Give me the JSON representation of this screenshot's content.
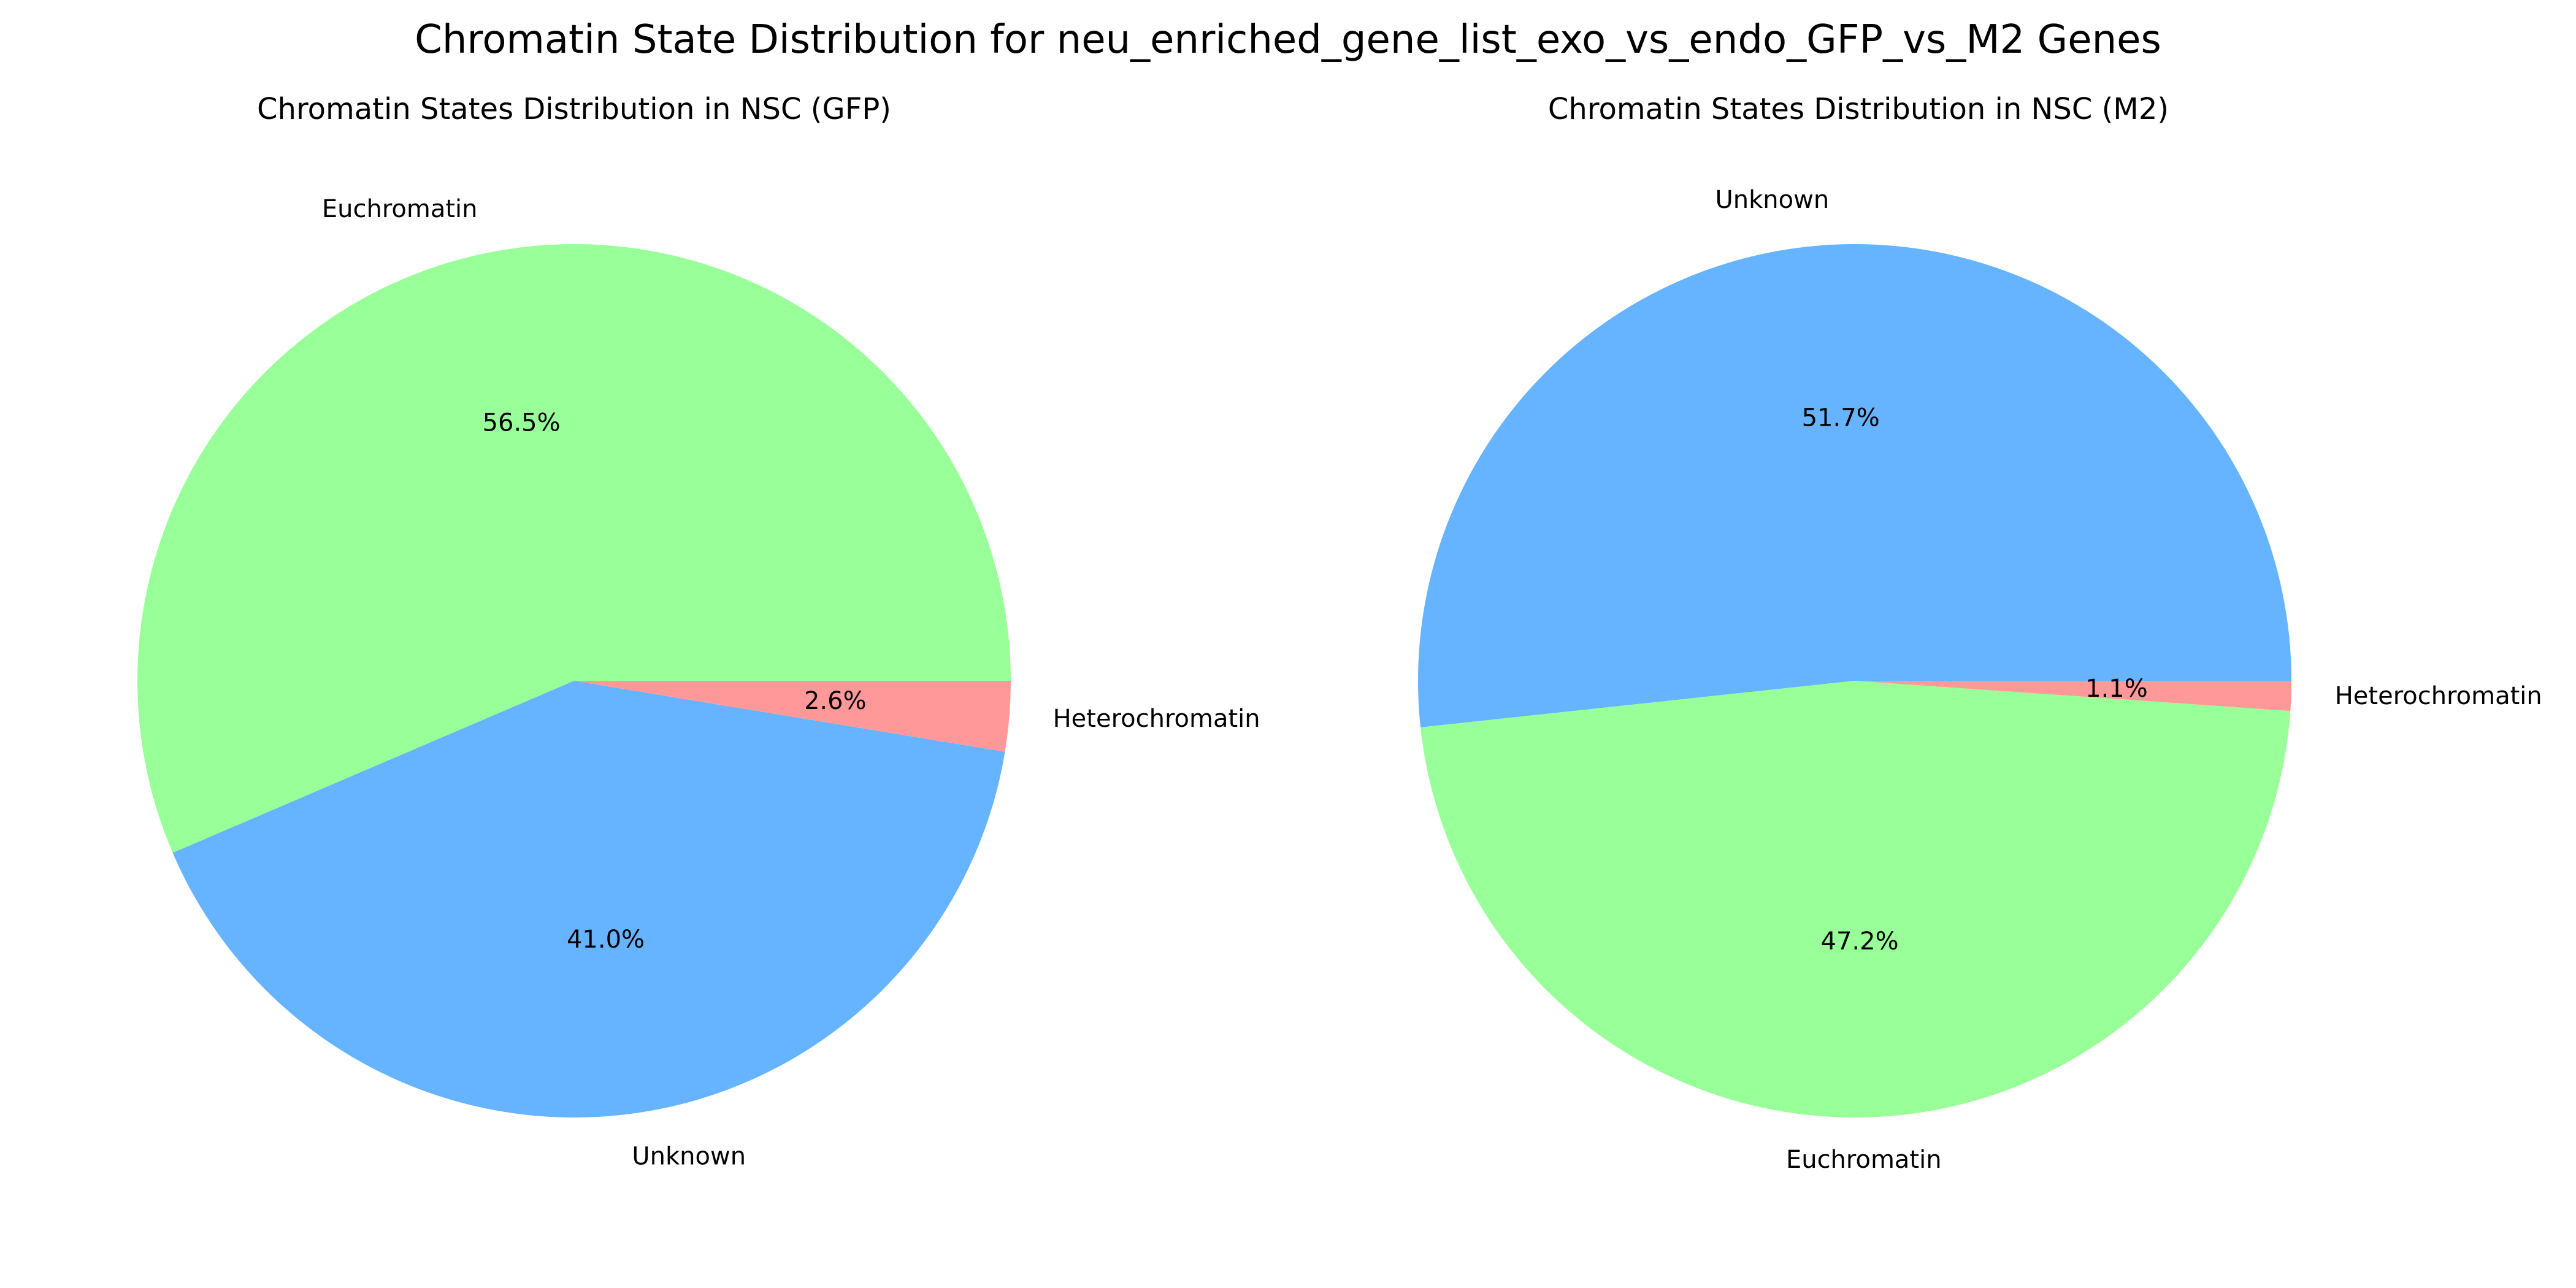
{
  "figure": {
    "suptitle": "Chromatin State Distribution for neu_enriched_gene_list_exo_vs_endo_GFP_vs_M2 Genes"
  },
  "colors": {
    "Euchromatin": "#99ff99",
    "Unknown": "#66b3ff",
    "Heterochromatin": "#ff9999"
  },
  "chart_data": [
    {
      "type": "pie",
      "title": "Chromatin States Distribution in NSC (GFP)",
      "start_angle_deg": 0,
      "direction": "counterclockwise",
      "slices": [
        {
          "label": "Euchromatin",
          "value": 56.5,
          "pct_label": "56.5%",
          "color": "#99ff99"
        },
        {
          "label": "Unknown",
          "value": 41.0,
          "pct_label": "41.0%",
          "color": "#66b3ff"
        },
        {
          "label": "Heterochromatin",
          "value": 2.6,
          "pct_label": "2.6%",
          "color": "#ff9999"
        }
      ]
    },
    {
      "type": "pie",
      "title": "Chromatin States Distribution in NSC (M2)",
      "start_angle_deg": 0,
      "direction": "counterclockwise",
      "slices": [
        {
          "label": "Unknown",
          "value": 51.7,
          "pct_label": "51.7%",
          "color": "#66b3ff"
        },
        {
          "label": "Euchromatin",
          "value": 47.2,
          "pct_label": "47.2%",
          "color": "#99ff99"
        },
        {
          "label": "Heterochromatin",
          "value": 1.1,
          "pct_label": "1.1%",
          "color": "#ff9999"
        }
      ]
    }
  ]
}
